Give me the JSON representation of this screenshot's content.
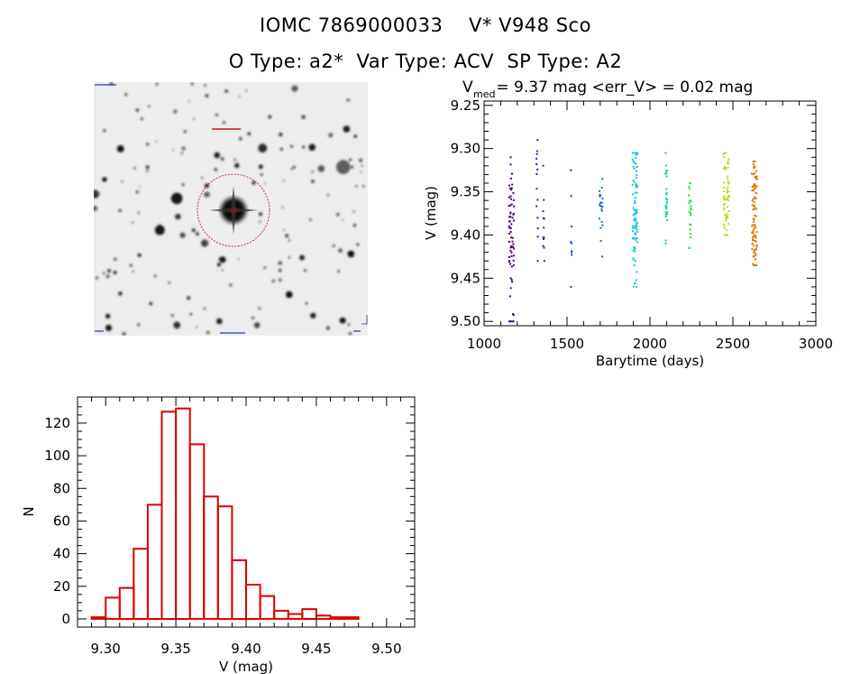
{
  "header": {
    "title_line1": "IOMC 7869000033    V* V948 Sco",
    "title_line2": "O Type: a2*  Var Type: ACV  SP Type: A2"
  },
  "finder_image": {
    "alt": "DSS finder chart image",
    "marker_color": "#cc0000"
  },
  "chart_data": [
    {
      "type": "scatter",
      "title_prefix": "V",
      "title_subscript": "med",
      "title_rest": " = 9.37 mag <err_V> = 0.02 mag",
      "xlabel": "Barytime (days)",
      "ylabel": "V (mag)",
      "xlim": [
        1000,
        3000
      ],
      "ylim": [
        9.25,
        9.5
      ],
      "y_inverted": true,
      "x_ticks": [
        1000,
        1500,
        2000,
        2500,
        3000
      ],
      "x_tick_labels": [
        "1000",
        "1500",
        "2000",
        "2500",
        "3000"
      ],
      "y_ticks": [
        9.25,
        9.3,
        9.35,
        9.4,
        9.45,
        9.5
      ],
      "y_tick_labels": [
        "9.25",
        "9.30",
        "9.35",
        "9.40",
        "9.45",
        "9.50"
      ],
      "groups": [
        {
          "x": 1165,
          "width": 30,
          "mag_min": 9.31,
          "mag_max": 9.5,
          "center": 9.4,
          "n": 70,
          "color": "#4b0082"
        },
        {
          "x": 1320,
          "width": 8,
          "mag_min": 9.29,
          "mag_max": 9.43,
          "center": 9.35,
          "n": 14,
          "color": "#3a1aa0"
        },
        {
          "x": 1360,
          "width": 8,
          "mag_min": 9.32,
          "mag_max": 9.43,
          "center": 9.37,
          "n": 12,
          "color": "#2c2bb0"
        },
        {
          "x": 1525,
          "width": 8,
          "mag_min": 9.325,
          "mag_max": 9.46,
          "center": 9.38,
          "n": 10,
          "color": "#1e40c0"
        },
        {
          "x": 1705,
          "width": 20,
          "mag_min": 9.335,
          "mag_max": 9.425,
          "center": 9.37,
          "n": 22,
          "color": "#1a6ad0"
        },
        {
          "x": 1910,
          "width": 30,
          "mag_min": 9.305,
          "mag_max": 9.46,
          "center": 9.37,
          "n": 95,
          "color": "#12c8e0"
        },
        {
          "x": 2100,
          "width": 12,
          "mag_min": 9.305,
          "mag_max": 9.41,
          "center": 9.35,
          "n": 28,
          "color": "#10d880"
        },
        {
          "x": 2240,
          "width": 16,
          "mag_min": 9.34,
          "mag_max": 9.415,
          "center": 9.37,
          "n": 22,
          "color": "#20e040"
        },
        {
          "x": 2460,
          "width": 36,
          "mag_min": 9.305,
          "mag_max": 9.4,
          "center": 9.36,
          "n": 70,
          "color": "#b8e020"
        },
        {
          "x": 2630,
          "width": 32,
          "mag_min": 9.315,
          "mag_max": 9.435,
          "center": 9.375,
          "n": 85,
          "color": "#e07000"
        }
      ]
    },
    {
      "type": "bar",
      "title": "",
      "xlabel": "V (mag)",
      "ylabel": "N",
      "xlim": [
        9.28,
        9.52
      ],
      "ylim": [
        -5,
        136
      ],
      "bin_width": 0.01,
      "bin_starts": [
        9.29,
        9.3,
        9.31,
        9.32,
        9.33,
        9.34,
        9.35,
        9.36,
        9.37,
        9.38,
        9.39,
        9.4,
        9.41,
        9.42,
        9.43,
        9.44,
        9.45,
        9.46,
        9.47,
        9.48,
        9.49
      ],
      "values": [
        1,
        13,
        19,
        43,
        70,
        127,
        129,
        107,
        75,
        69,
        36,
        21,
        14,
        5,
        3,
        6,
        2,
        1,
        1,
        0,
        0
      ],
      "x_ticks": [
        9.3,
        9.35,
        9.4,
        9.45,
        9.5
      ],
      "x_tick_labels": [
        "9.30",
        "9.35",
        "9.40",
        "9.45",
        "9.50"
      ],
      "y_ticks": [
        0,
        20,
        40,
        60,
        80,
        100,
        120
      ],
      "y_tick_labels": [
        "0",
        "20",
        "40",
        "60",
        "80",
        "100",
        "120"
      ],
      "bar_color": "#dd0000"
    }
  ]
}
